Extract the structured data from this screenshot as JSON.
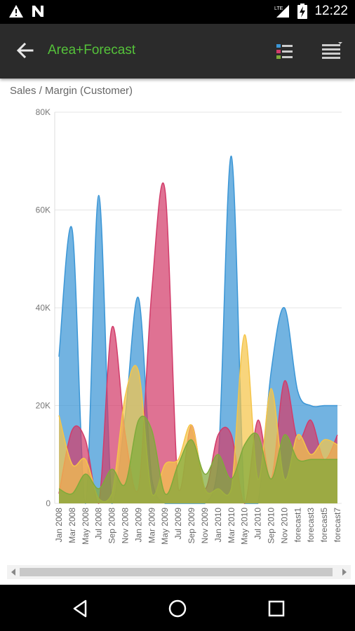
{
  "status_bar": {
    "time": "12:22",
    "icons": [
      "warning-icon",
      "n-notification-icon",
      "lte-signal-icon",
      "battery-charging-icon"
    ]
  },
  "app_bar": {
    "title": "Area+Forecast",
    "icons": [
      "back-arrow-icon",
      "legend-list-icon",
      "menu-icon"
    ]
  },
  "colors": {
    "title": "#55c23a",
    "blue": "#3b96d6",
    "red": "#d23c6a",
    "yellow": "#f5c54a",
    "green": "#7faa3a"
  },
  "chart_data": {
    "type": "area",
    "title": "Sales / Margin (Customer)",
    "xlabel": "",
    "ylabel": "",
    "ylim": [
      0,
      80000
    ],
    "y_ticks": [
      "0",
      "20K",
      "40K",
      "60K",
      "80K"
    ],
    "y_tick_values": [
      0,
      20000,
      40000,
      60000,
      80000
    ],
    "grid": true,
    "categories": [
      "Jan 2008",
      "Mar 2008",
      "May 2008",
      "Jul 2008",
      "Sep 2008",
      "Nov 2008",
      "Jan 2009",
      "Mar 2009",
      "May 2009",
      "Jul 2009",
      "Sep 2009",
      "Nov 2009",
      "Jan 2010",
      "Mar 2010",
      "May 2010",
      "Jul 2010",
      "Sep 2010",
      "Nov 2010",
      "forecast1",
      "forecast3",
      "forecast5",
      "forecast7"
    ],
    "series": [
      {
        "color": "#3b96d6",
        "values": [
          30000,
          56000,
          0,
          63000,
          0,
          18000,
          42000,
          5000,
          0,
          0,
          0,
          0,
          8000,
          71000,
          0,
          0,
          27000,
          40000,
          23000,
          20000,
          20000,
          20000
        ]
      },
      {
        "color": "#d23c6a",
        "values": [
          2000,
          15000,
          13000,
          0,
          36000,
          14000,
          3000,
          43500,
          64000,
          3000,
          16000,
          3000,
          14000,
          14000,
          0,
          17000,
          5000,
          25000,
          13000,
          17000,
          9000,
          14000
        ]
      },
      {
        "color": "#f5c54a",
        "values": [
          18000,
          8000,
          9000,
          1000,
          2000,
          22000,
          27000,
          2000,
          8000,
          9000,
          16000,
          3000,
          3000,
          3000,
          34500,
          5000,
          23500,
          5000,
          14000,
          10000,
          13000,
          12000
        ]
      },
      {
        "color": "#7faa3a",
        "values": [
          3000,
          2000,
          6000,
          3000,
          7000,
          4000,
          17000,
          15000,
          2000,
          8000,
          13000,
          6000,
          10000,
          5000,
          12000,
          14000,
          5000,
          14000,
          9000,
          9000,
          9000,
          9000
        ]
      }
    ]
  },
  "scrollbar": {
    "position": 0.0
  }
}
